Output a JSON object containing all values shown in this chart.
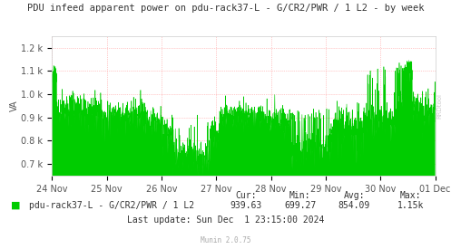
{
  "title": "PDU infeed apparent power on pdu-rack37-L - G/CR2/PWR / 1 L2 - by week",
  "ylabel": "VA",
  "ymin": 0.65,
  "ymax": 1.25,
  "yticks": [
    0.7,
    0.8,
    0.9,
    1.0,
    1.1,
    1.2
  ],
  "ytick_labels": [
    "0.7 k",
    "0.8 k",
    "0.9 k",
    "1.0 k",
    "1.1 k",
    "1.2 k"
  ],
  "xlabel_ticks": [
    "24 Nov",
    "25 Nov",
    "26 Nov",
    "27 Nov",
    "28 Nov",
    "29 Nov",
    "30 Nov",
    "01 Dec"
  ],
  "fill_color": "#00cc00",
  "line_color": "#00cc00",
  "bg_color": "#ffffff",
  "plot_bg_color": "#ffffff",
  "grid_color": "#ff9999",
  "legend_label": "pdu-rack37-L - G/CR2/PWR / 1 L2",
  "cur": "939.63",
  "min": "699.27",
  "avg": "854.09",
  "max": "1.15k",
  "last_update": "Last update: Sun Dec  1 23:15:00 2024",
  "munin_version": "Munin 2.0.75",
  "title_fontsize": 7.5,
  "axis_fontsize": 7,
  "legend_fontsize": 7,
  "seed": 42
}
